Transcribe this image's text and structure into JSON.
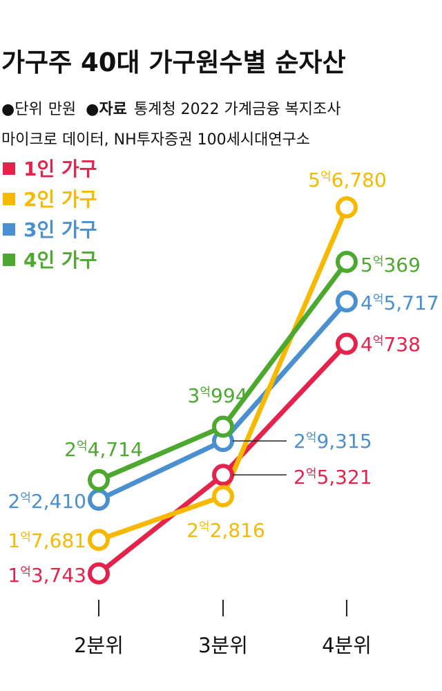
{
  "title": "가구주 40대 가구원수별 순자산",
  "source_line1": {
    "unit_label": "단위",
    "unit_value": "만원",
    "source_label": "자료",
    "source_value": "통계청 2022 가계금융 복지조사"
  },
  "source_line2": "마이크로 데이터, NH투자증권 100세시대연구소",
  "chart_data": {
    "type": "line",
    "categories": [
      "2분위",
      "3분위",
      "4분위"
    ],
    "unit": "만원",
    "legend_position": "top-left",
    "grid": false,
    "series": [
      {
        "name": "1인 가구",
        "color": "#e3234b",
        "values": [
          13743,
          25321,
          40738
        ],
        "labels": [
          "1억3,743",
          "2억5,321",
          "4억738"
        ]
      },
      {
        "name": "2인 가구",
        "color": "#f7b900",
        "values": [
          17681,
          22816,
          56780
        ],
        "labels": [
          "1억7,681",
          "2억2,816",
          "5억6,780"
        ]
      },
      {
        "name": "3인 가구",
        "color": "#4a8fcf",
        "values": [
          22410,
          29315,
          45717
        ],
        "labels": [
          "2억2,410",
          "2억9,315",
          "4억5,717"
        ]
      },
      {
        "name": "4인 가구",
        "color": "#4ca82f",
        "values": [
          24714,
          30994,
          50369
        ],
        "labels": [
          "2억4,714",
          "3억994",
          "5억369"
        ]
      }
    ]
  }
}
